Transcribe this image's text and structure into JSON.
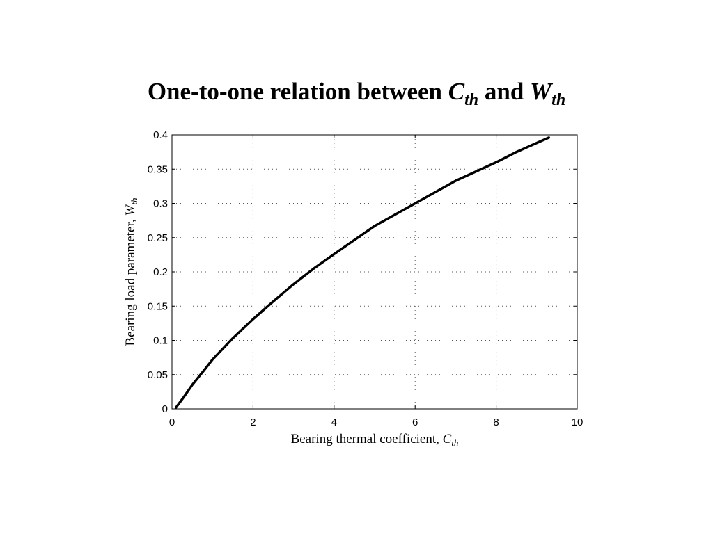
{
  "title": {
    "prefix": "One-to-one relation between ",
    "var1": "C",
    "var1_sub": "th",
    "middle": " and ",
    "var2": "W",
    "var2_sub": "th"
  },
  "chart_data": {
    "type": "line",
    "title": "One-to-one relation between Cth and Wth",
    "xlabel": "Bearing thermal coefficient, C_th",
    "ylabel": "Bearing load parameter, W_th",
    "xlabel_text": "Bearing thermal coefficient, ",
    "xlabel_var": "C",
    "xlabel_sub": "th",
    "ylabel_text": "Bearing load parameter, ",
    "ylabel_var": "W",
    "ylabel_sub": "th",
    "xlim": [
      0,
      10
    ],
    "ylim": [
      0,
      0.4
    ],
    "xticks": [
      0,
      2,
      4,
      6,
      8,
      10
    ],
    "xtick_labels": [
      "0",
      "2",
      "4",
      "6",
      "8",
      "10"
    ],
    "yticks": [
      0,
      0.05,
      0.1,
      0.15,
      0.2,
      0.25,
      0.3,
      0.35,
      0.4
    ],
    "ytick_labels": [
      "0",
      "0.05",
      "0.1",
      "0.15",
      "0.2",
      "0.25",
      "0.3",
      "0.35",
      "0.4"
    ],
    "grid": true,
    "line_color": "#000000",
    "series": [
      {
        "x": [
          0.1,
          0.3,
          0.5,
          0.8,
          1.0,
          1.5,
          2.0,
          2.5,
          3.0,
          3.5,
          4.0,
          5.0,
          6.0,
          7.0,
          8.0,
          8.5,
          9.3
        ],
        "y": [
          0.002,
          0.018,
          0.035,
          0.057,
          0.072,
          0.103,
          0.131,
          0.157,
          0.182,
          0.205,
          0.226,
          0.267,
          0.3,
          0.333,
          0.36,
          0.375,
          0.396
        ]
      }
    ]
  }
}
